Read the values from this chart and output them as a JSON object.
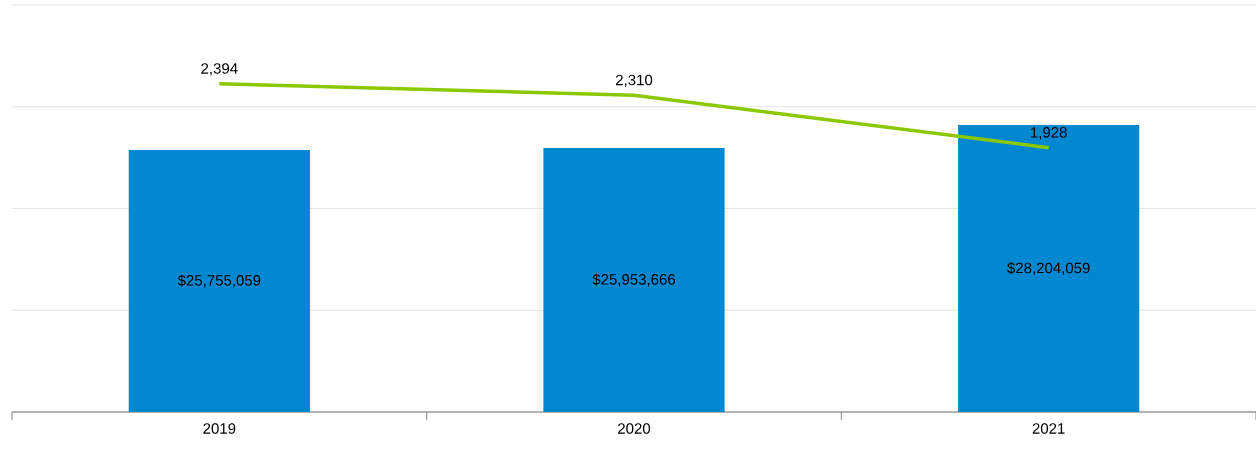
{
  "chart_data": {
    "type": "bar",
    "categories": [
      "2019",
      "2020",
      "2021"
    ],
    "series": [
      {
        "color": "#0288d1",
        "values": [
          25755059,
          25953666,
          28204059
        ],
        "value_labels": [
          "$25,755,059",
          "$25,953,666",
          "$28,204,059"
        ]
      },
      {
        "type": "line",
        "axis": "y2",
        "color": "#8cc800",
        "values": [
          2394,
          2310,
          1928
        ],
        "value_labels": [
          "2,394",
          "2,310",
          "1,928"
        ]
      }
    ],
    "ylim": [
      0,
      40000000
    ],
    "yticks": [
      {
        "value": 10000000,
        "label": null
      },
      {
        "value": 20000000,
        "label": null
      },
      {
        "value": 30000000,
        "label": null
      },
      {
        "value": 40000000,
        "label": null
      }
    ],
    "grid": "y",
    "tick_labels": "x",
    "marker": "none"
  }
}
